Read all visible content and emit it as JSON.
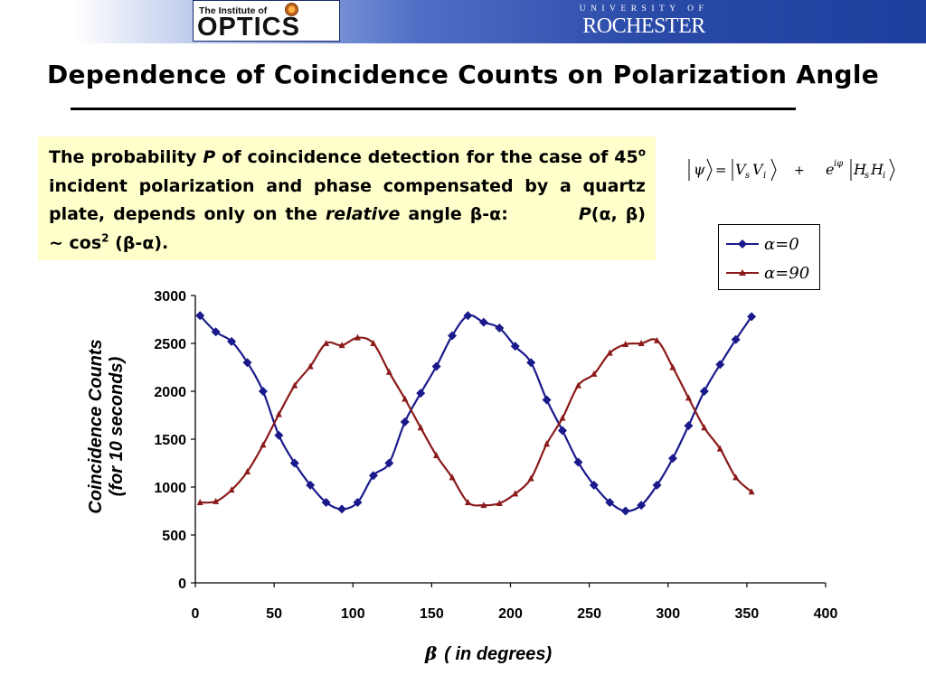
{
  "header": {
    "optics_logo_small": "The Institute of",
    "optics_logo_big": "OPTICS",
    "rochester_small": "UNIVERSITY OF",
    "rochester_big": "ROCHESTER"
  },
  "title": "Dependence of Coincidence Counts on Polarization Angle",
  "textbox": {
    "t1": "The probability ",
    "t2": "P",
    "t3": " of coincidence detection for the case of 45",
    "t4": "o",
    "t5": " incident polarization and phase compensated by a quartz plate, depends only on the ",
    "t6": "relative",
    "t7": " angle β-α:",
    "t8": "P",
    "t9": "(α, β) ~ cos",
    "t10": "2",
    "t11": " (β-α)."
  },
  "equation": {
    "psi": "ψ",
    "eq": "=",
    "v1": "V",
    "s": "s",
    "v2": "V",
    "i": "i",
    "plus": "+",
    "e": "e",
    "iphi": "iφ",
    "h1": "H",
    "s2": "s",
    "h2": "H",
    "i2": "i"
  },
  "colors": {
    "series_alpha0": "#1a1a8c",
    "series_alpha90": "#8b1a1a",
    "textbox_bg": "#ffffcc"
  },
  "chart_data": {
    "type": "line",
    "xlabel_symbol": "β",
    "xlabel": "( in degrees)",
    "ylabel_line1": "Coincidence Counts",
    "ylabel_line2": "(for 10 seconds)",
    "xlim": [
      0,
      400
    ],
    "ylim": [
      0,
      3000
    ],
    "xticks": [
      0,
      50,
      100,
      150,
      200,
      250,
      300,
      350,
      400
    ],
    "yticks": [
      0,
      500,
      1000,
      1500,
      2000,
      2500,
      3000
    ],
    "grid": false,
    "legend_position": "top-right",
    "series": [
      {
        "name": "α=0",
        "marker": "diamond",
        "x": [
          3,
          13,
          23,
          33,
          43,
          53,
          63,
          73,
          83,
          93,
          103,
          113,
          123,
          133,
          143,
          153,
          163,
          173,
          183,
          193,
          203,
          213,
          223,
          233,
          243,
          253,
          263,
          273,
          283,
          293,
          303,
          313,
          323,
          333,
          343,
          353
        ],
        "y": [
          2790,
          2620,
          2520,
          2300,
          2000,
          1540,
          1250,
          1020,
          840,
          770,
          840,
          1120,
          1250,
          1680,
          1980,
          2260,
          2580,
          2790,
          2720,
          2660,
          2470,
          2300,
          1910,
          1590,
          1260,
          1020,
          840,
          750,
          810,
          1020,
          1300,
          1640,
          2000,
          2280,
          2540,
          2780
        ]
      },
      {
        "name": "α=90",
        "marker": "triangle",
        "x": [
          3,
          13,
          23,
          33,
          43,
          53,
          63,
          73,
          83,
          93,
          103,
          113,
          123,
          133,
          143,
          153,
          163,
          173,
          183,
          193,
          203,
          213,
          223,
          233,
          243,
          253,
          263,
          273,
          283,
          293,
          303,
          313,
          323,
          333,
          343,
          353
        ],
        "y": [
          840,
          850,
          970,
          1160,
          1440,
          1760,
          2060,
          2260,
          2500,
          2480,
          2560,
          2500,
          2200,
          1920,
          1620,
          1330,
          1100,
          840,
          810,
          830,
          930,
          1090,
          1450,
          1720,
          2060,
          2180,
          2400,
          2490,
          2500,
          2530,
          2250,
          1930,
          1620,
          1400,
          1100,
          950
        ]
      }
    ]
  }
}
